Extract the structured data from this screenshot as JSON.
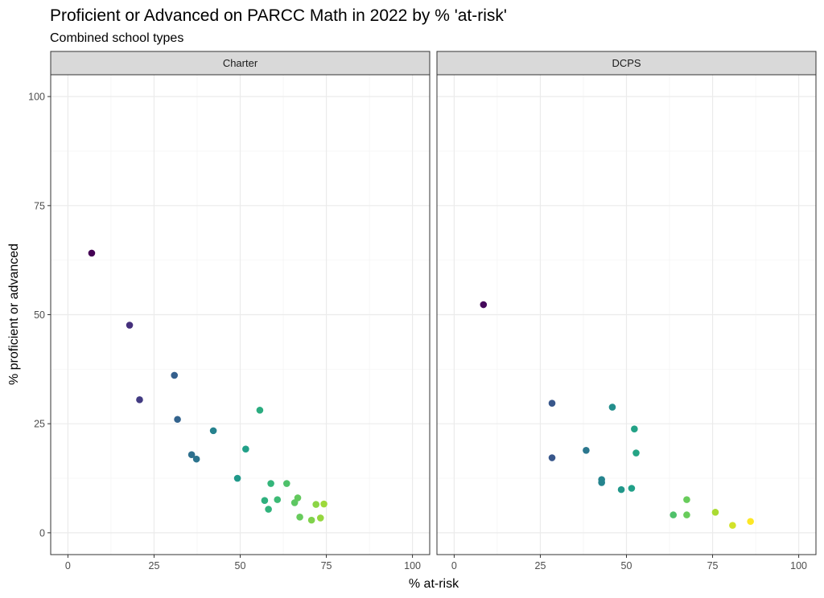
{
  "chart_data": {
    "type": "scatter",
    "title": "Proficient or Advanced on PARCC Math in 2022 by % 'at-risk'",
    "subtitle": "Combined school types",
    "xlabel": "% at-risk",
    "ylabel": "% proficient or advanced",
    "xlim": [
      -5,
      105
    ],
    "ylim": [
      -5,
      105
    ],
    "x_ticks": [
      0,
      25,
      50,
      75,
      100
    ],
    "y_ticks": [
      0,
      25,
      50,
      75,
      100
    ],
    "grid": true,
    "color_scale": "viridis",
    "color_by": "x",
    "color_range": [
      6.9,
      86
    ],
    "panels": [
      {
        "name": "Charter",
        "points": [
          {
            "x": 6.9,
            "y": 64.1
          },
          {
            "x": 17.9,
            "y": 47.6
          },
          {
            "x": 20.8,
            "y": 30.5
          },
          {
            "x": 30.9,
            "y": 36.1
          },
          {
            "x": 31.8,
            "y": 26.0
          },
          {
            "x": 35.9,
            "y": 17.9
          },
          {
            "x": 37.3,
            "y": 16.9
          },
          {
            "x": 42.2,
            "y": 23.4
          },
          {
            "x": 49.2,
            "y": 12.5
          },
          {
            "x": 51.6,
            "y": 19.2
          },
          {
            "x": 55.7,
            "y": 28.1
          },
          {
            "x": 57.1,
            "y": 7.4
          },
          {
            "x": 58.2,
            "y": 5.4
          },
          {
            "x": 58.9,
            "y": 11.3
          },
          {
            "x": 60.8,
            "y": 7.6
          },
          {
            "x": 63.5,
            "y": 11.3
          },
          {
            "x": 65.8,
            "y": 6.9
          },
          {
            "x": 66.7,
            "y": 8.0
          },
          {
            "x": 67.3,
            "y": 3.6
          },
          {
            "x": 70.7,
            "y": 2.9
          },
          {
            "x": 72.0,
            "y": 6.5
          },
          {
            "x": 73.3,
            "y": 3.4
          },
          {
            "x": 74.3,
            "y": 6.6
          }
        ]
      },
      {
        "name": "DCPS",
        "points": [
          {
            "x": 8.5,
            "y": 52.3
          },
          {
            "x": 28.4,
            "y": 29.7
          },
          {
            "x": 28.4,
            "y": 17.2
          },
          {
            "x": 38.3,
            "y": 18.9
          },
          {
            "x": 42.8,
            "y": 12.2
          },
          {
            "x": 42.8,
            "y": 11.5
          },
          {
            "x": 45.9,
            "y": 28.8
          },
          {
            "x": 48.5,
            "y": 9.9
          },
          {
            "x": 51.5,
            "y": 10.2
          },
          {
            "x": 52.3,
            "y": 23.8
          },
          {
            "x": 52.8,
            "y": 18.3
          },
          {
            "x": 63.6,
            "y": 4.1
          },
          {
            "x": 67.5,
            "y": 7.6
          },
          {
            "x": 67.5,
            "y": 4.1
          },
          {
            "x": 75.8,
            "y": 4.7
          },
          {
            "x": 80.8,
            "y": 1.7
          },
          {
            "x": 86.0,
            "y": 2.6
          }
        ]
      }
    ]
  },
  "colors": {
    "panel_border": "#333333",
    "strip_fill": "#d9d9d9",
    "grid_major": "#ebebeb",
    "grid_minor": "#f5f5f5"
  }
}
